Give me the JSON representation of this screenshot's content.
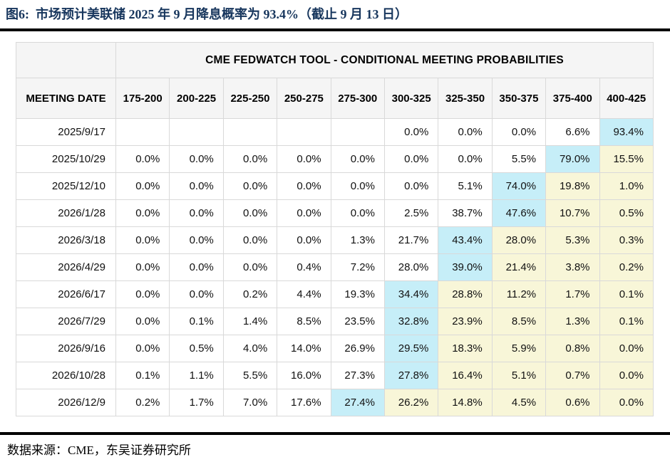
{
  "title": "图6:  市场预计美联储 2025 年 9 月降息概率为 93.4%（截止 9 月 13 日）",
  "source_note": "数据来源：CME，东吴证券研究所",
  "colors": {
    "cyan": "#c6eef8",
    "yellow": "#f8f6d8",
    "header_bg": "#f5f5f5",
    "border": "#d9d9d9",
    "title_navy": "#17365d"
  },
  "chart_data": {
    "type": "table",
    "title": "CME FEDWATCH TOOL - CONDITIONAL MEETING PROBABILITIES",
    "row_header": "MEETING DATE",
    "columns": [
      "175-200",
      "200-225",
      "225-250",
      "250-275",
      "275-300",
      "300-325",
      "325-350",
      "350-375",
      "375-400",
      "400-425"
    ],
    "rows": [
      {
        "date": "2025/9/17",
        "values": [
          "",
          "",
          "",
          "",
          "",
          "0.0%",
          "0.0%",
          "0.0%",
          "6.6%",
          "93.4%"
        ],
        "marks": [
          "",
          "",
          "",
          "",
          "",
          "",
          "",
          "",
          "",
          "cyan"
        ]
      },
      {
        "date": "2025/10/29",
        "values": [
          "0.0%",
          "0.0%",
          "0.0%",
          "0.0%",
          "0.0%",
          "0.0%",
          "0.0%",
          "5.5%",
          "79.0%",
          "15.5%"
        ],
        "marks": [
          "",
          "",
          "",
          "",
          "",
          "",
          "",
          "",
          "cyan",
          "yellow"
        ]
      },
      {
        "date": "2025/12/10",
        "values": [
          "0.0%",
          "0.0%",
          "0.0%",
          "0.0%",
          "0.0%",
          "0.0%",
          "5.1%",
          "74.0%",
          "19.8%",
          "1.0%"
        ],
        "marks": [
          "",
          "",
          "",
          "",
          "",
          "",
          "",
          "cyan",
          "yellow",
          "yellow"
        ]
      },
      {
        "date": "2026/1/28",
        "values": [
          "0.0%",
          "0.0%",
          "0.0%",
          "0.0%",
          "0.0%",
          "2.5%",
          "38.7%",
          "47.6%",
          "10.7%",
          "0.5%"
        ],
        "marks": [
          "",
          "",
          "",
          "",
          "",
          "",
          "",
          "cyan",
          "yellow",
          "yellow"
        ]
      },
      {
        "date": "2026/3/18",
        "values": [
          "0.0%",
          "0.0%",
          "0.0%",
          "0.0%",
          "1.3%",
          "21.7%",
          "43.4%",
          "28.0%",
          "5.3%",
          "0.3%"
        ],
        "marks": [
          "",
          "",
          "",
          "",
          "",
          "",
          "cyan",
          "yellow",
          "yellow",
          "yellow"
        ]
      },
      {
        "date": "2026/4/29",
        "values": [
          "0.0%",
          "0.0%",
          "0.0%",
          "0.4%",
          "7.2%",
          "28.0%",
          "39.0%",
          "21.4%",
          "3.8%",
          "0.2%"
        ],
        "marks": [
          "",
          "",
          "",
          "",
          "",
          "",
          "cyan",
          "yellow",
          "yellow",
          "yellow"
        ]
      },
      {
        "date": "2026/6/17",
        "values": [
          "0.0%",
          "0.0%",
          "0.2%",
          "4.4%",
          "19.3%",
          "34.4%",
          "28.8%",
          "11.2%",
          "1.7%",
          "0.1%"
        ],
        "marks": [
          "",
          "",
          "",
          "",
          "",
          "cyan",
          "yellow",
          "yellow",
          "yellow",
          "yellow"
        ]
      },
      {
        "date": "2026/7/29",
        "values": [
          "0.0%",
          "0.1%",
          "1.4%",
          "8.5%",
          "23.5%",
          "32.8%",
          "23.9%",
          "8.5%",
          "1.3%",
          "0.1%"
        ],
        "marks": [
          "",
          "",
          "",
          "",
          "",
          "cyan",
          "yellow",
          "yellow",
          "yellow",
          "yellow"
        ]
      },
      {
        "date": "2026/9/16",
        "values": [
          "0.0%",
          "0.5%",
          "4.0%",
          "14.0%",
          "26.9%",
          "29.5%",
          "18.3%",
          "5.9%",
          "0.8%",
          "0.0%"
        ],
        "marks": [
          "",
          "",
          "",
          "",
          "",
          "cyan",
          "yellow",
          "yellow",
          "yellow",
          "yellow"
        ]
      },
      {
        "date": "2026/10/28",
        "values": [
          "0.1%",
          "1.1%",
          "5.5%",
          "16.0%",
          "27.3%",
          "27.8%",
          "16.4%",
          "5.1%",
          "0.7%",
          "0.0%"
        ],
        "marks": [
          "",
          "",
          "",
          "",
          "",
          "cyan",
          "yellow",
          "yellow",
          "yellow",
          "yellow"
        ]
      },
      {
        "date": "2026/12/9",
        "values": [
          "0.2%",
          "1.7%",
          "7.0%",
          "17.6%",
          "27.4%",
          "26.2%",
          "14.8%",
          "4.5%",
          "0.6%",
          "0.0%"
        ],
        "marks": [
          "",
          "",
          "",
          "",
          "cyan",
          "yellow",
          "yellow",
          "yellow",
          "yellow",
          "yellow"
        ]
      }
    ]
  }
}
